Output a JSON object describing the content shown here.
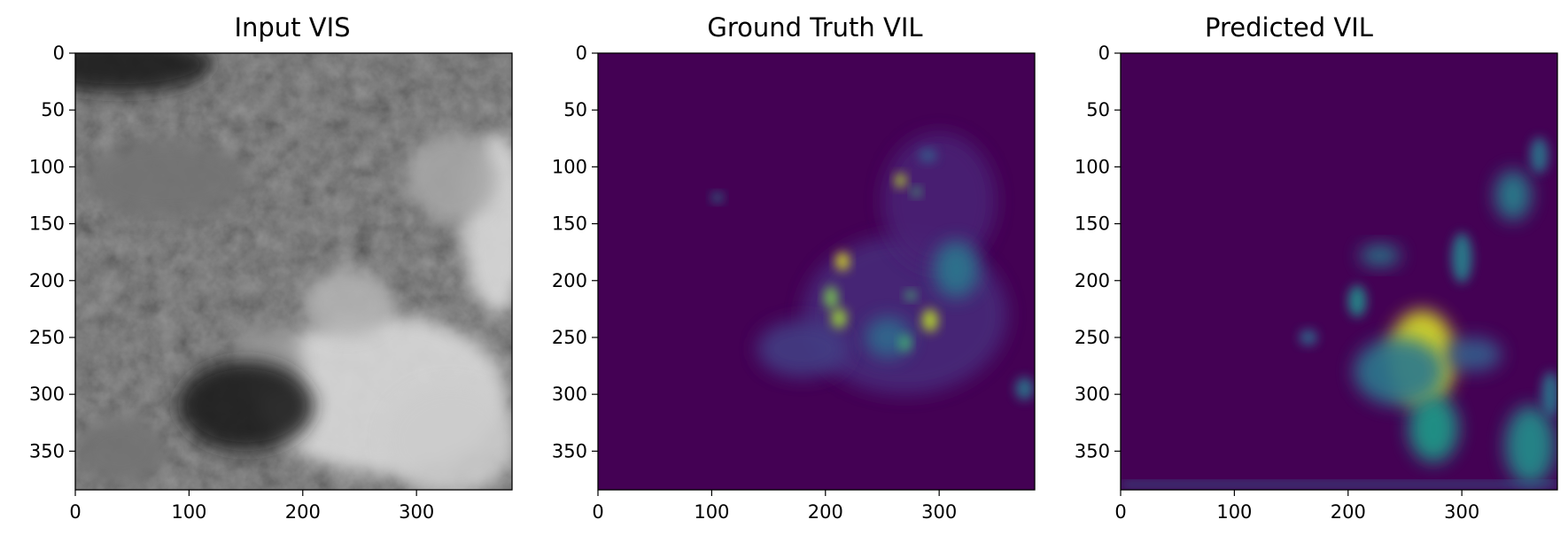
{
  "chart_data": [
    {
      "type": "heatmap",
      "title": "Input VIS",
      "colormap": "gray",
      "xlabel": "",
      "ylabel": "",
      "xlim": [
        0,
        384
      ],
      "ylim": [
        384,
        0
      ],
      "xticks": [
        0,
        100,
        200,
        300
      ],
      "yticks": [
        0,
        50,
        100,
        150,
        200,
        250,
        300,
        350
      ],
      "features": [
        {
          "kind": "bright-cloud",
          "x": 270,
          "y": 300,
          "rx": 110,
          "ry": 70,
          "intensity": 0.85
        },
        {
          "kind": "bright-cloud",
          "x": 330,
          "y": 340,
          "rx": 60,
          "ry": 50,
          "intensity": 0.8
        },
        {
          "kind": "bright-cloud",
          "x": 370,
          "y": 150,
          "rx": 30,
          "ry": 80,
          "intensity": 0.85
        },
        {
          "kind": "bright-cloud",
          "x": 240,
          "y": 220,
          "rx": 40,
          "ry": 30,
          "intensity": 0.7
        },
        {
          "kind": "bright-cloud",
          "x": 330,
          "y": 110,
          "rx": 40,
          "ry": 40,
          "intensity": 0.65
        },
        {
          "kind": "bright-cloud",
          "x": 170,
          "y": 270,
          "rx": 30,
          "ry": 30,
          "intensity": 0.6
        },
        {
          "kind": "bright-cloud",
          "x": 40,
          "y": 350,
          "rx": 40,
          "ry": 30,
          "intensity": 0.45
        },
        {
          "kind": "bright-cloud",
          "x": 80,
          "y": 110,
          "rx": 70,
          "ry": 35,
          "intensity": 0.45
        },
        {
          "kind": "dark-band",
          "x": 150,
          "y": 310,
          "rx": 60,
          "ry": 40,
          "intensity": 0.1
        },
        {
          "kind": "dark-band",
          "x": 40,
          "y": 10,
          "rx": 80,
          "ry": 25,
          "intensity": 0.1
        }
      ]
    },
    {
      "type": "heatmap",
      "title": "Ground Truth VIL",
      "colormap": "viridis",
      "xlabel": "",
      "ylabel": "",
      "xlim": [
        0,
        384
      ],
      "ylim": [
        384,
        0
      ],
      "xticks": [
        0,
        100,
        200,
        300
      ],
      "yticks": [
        0,
        50,
        100,
        150,
        200,
        250,
        300,
        350
      ],
      "features": [
        {
          "x": 270,
          "y": 230,
          "rx": 90,
          "ry": 70,
          "intensity": 0.12
        },
        {
          "x": 300,
          "y": 130,
          "rx": 50,
          "ry": 60,
          "intensity": 0.1
        },
        {
          "x": 180,
          "y": 260,
          "rx": 40,
          "ry": 25,
          "intensity": 0.18
        },
        {
          "x": 315,
          "y": 190,
          "rx": 20,
          "ry": 25,
          "intensity": 0.4
        },
        {
          "x": 255,
          "y": 250,
          "rx": 20,
          "ry": 18,
          "intensity": 0.35
        },
        {
          "x": 215,
          "y": 183,
          "rx": 6,
          "ry": 8,
          "intensity": 0.95
        },
        {
          "x": 205,
          "y": 215,
          "rx": 6,
          "ry": 10,
          "intensity": 0.8
        },
        {
          "x": 212,
          "y": 233,
          "rx": 7,
          "ry": 9,
          "intensity": 0.85
        },
        {
          "x": 266,
          "y": 112,
          "rx": 5,
          "ry": 6,
          "intensity": 0.9
        },
        {
          "x": 280,
          "y": 122,
          "rx": 4,
          "ry": 4,
          "intensity": 0.7
        },
        {
          "x": 292,
          "y": 235,
          "rx": 7,
          "ry": 10,
          "intensity": 0.9
        },
        {
          "x": 275,
          "y": 213,
          "rx": 5,
          "ry": 4,
          "intensity": 0.7
        },
        {
          "x": 270,
          "y": 255,
          "rx": 5,
          "ry": 7,
          "intensity": 0.7
        },
        {
          "x": 375,
          "y": 295,
          "rx": 8,
          "ry": 10,
          "intensity": 0.4
        },
        {
          "x": 105,
          "y": 127,
          "rx": 5,
          "ry": 4,
          "intensity": 0.45
        },
        {
          "x": 290,
          "y": 90,
          "rx": 8,
          "ry": 6,
          "intensity": 0.3
        }
      ]
    },
    {
      "type": "heatmap",
      "title": "Predicted VIL",
      "colormap": "viridis",
      "xlabel": "",
      "ylabel": "",
      "xlim": [
        0,
        384
      ],
      "ylim": [
        384,
        0
      ],
      "xticks": [
        0,
        100,
        200,
        300
      ],
      "yticks": [
        0,
        50,
        100,
        150,
        200,
        250,
        300,
        350
      ],
      "features": [
        {
          "x": 265,
          "y": 268,
          "rx": 30,
          "ry": 42,
          "intensity": 0.95
        },
        {
          "x": 275,
          "y": 330,
          "rx": 22,
          "ry": 30,
          "intensity": 0.55
        },
        {
          "x": 245,
          "y": 280,
          "rx": 40,
          "ry": 30,
          "intensity": 0.4
        },
        {
          "x": 310,
          "y": 265,
          "rx": 25,
          "ry": 15,
          "intensity": 0.3
        },
        {
          "x": 208,
          "y": 218,
          "rx": 8,
          "ry": 14,
          "intensity": 0.5
        },
        {
          "x": 228,
          "y": 178,
          "rx": 18,
          "ry": 9,
          "intensity": 0.45
        },
        {
          "x": 300,
          "y": 180,
          "rx": 9,
          "ry": 22,
          "intensity": 0.45
        },
        {
          "x": 345,
          "y": 125,
          "rx": 16,
          "ry": 22,
          "intensity": 0.45
        },
        {
          "x": 368,
          "y": 90,
          "rx": 8,
          "ry": 16,
          "intensity": 0.4
        },
        {
          "x": 165,
          "y": 250,
          "rx": 8,
          "ry": 7,
          "intensity": 0.35
        },
        {
          "x": 360,
          "y": 345,
          "rx": 22,
          "ry": 35,
          "intensity": 0.5
        },
        {
          "x": 378,
          "y": 300,
          "rx": 8,
          "ry": 20,
          "intensity": 0.4
        }
      ]
    }
  ]
}
